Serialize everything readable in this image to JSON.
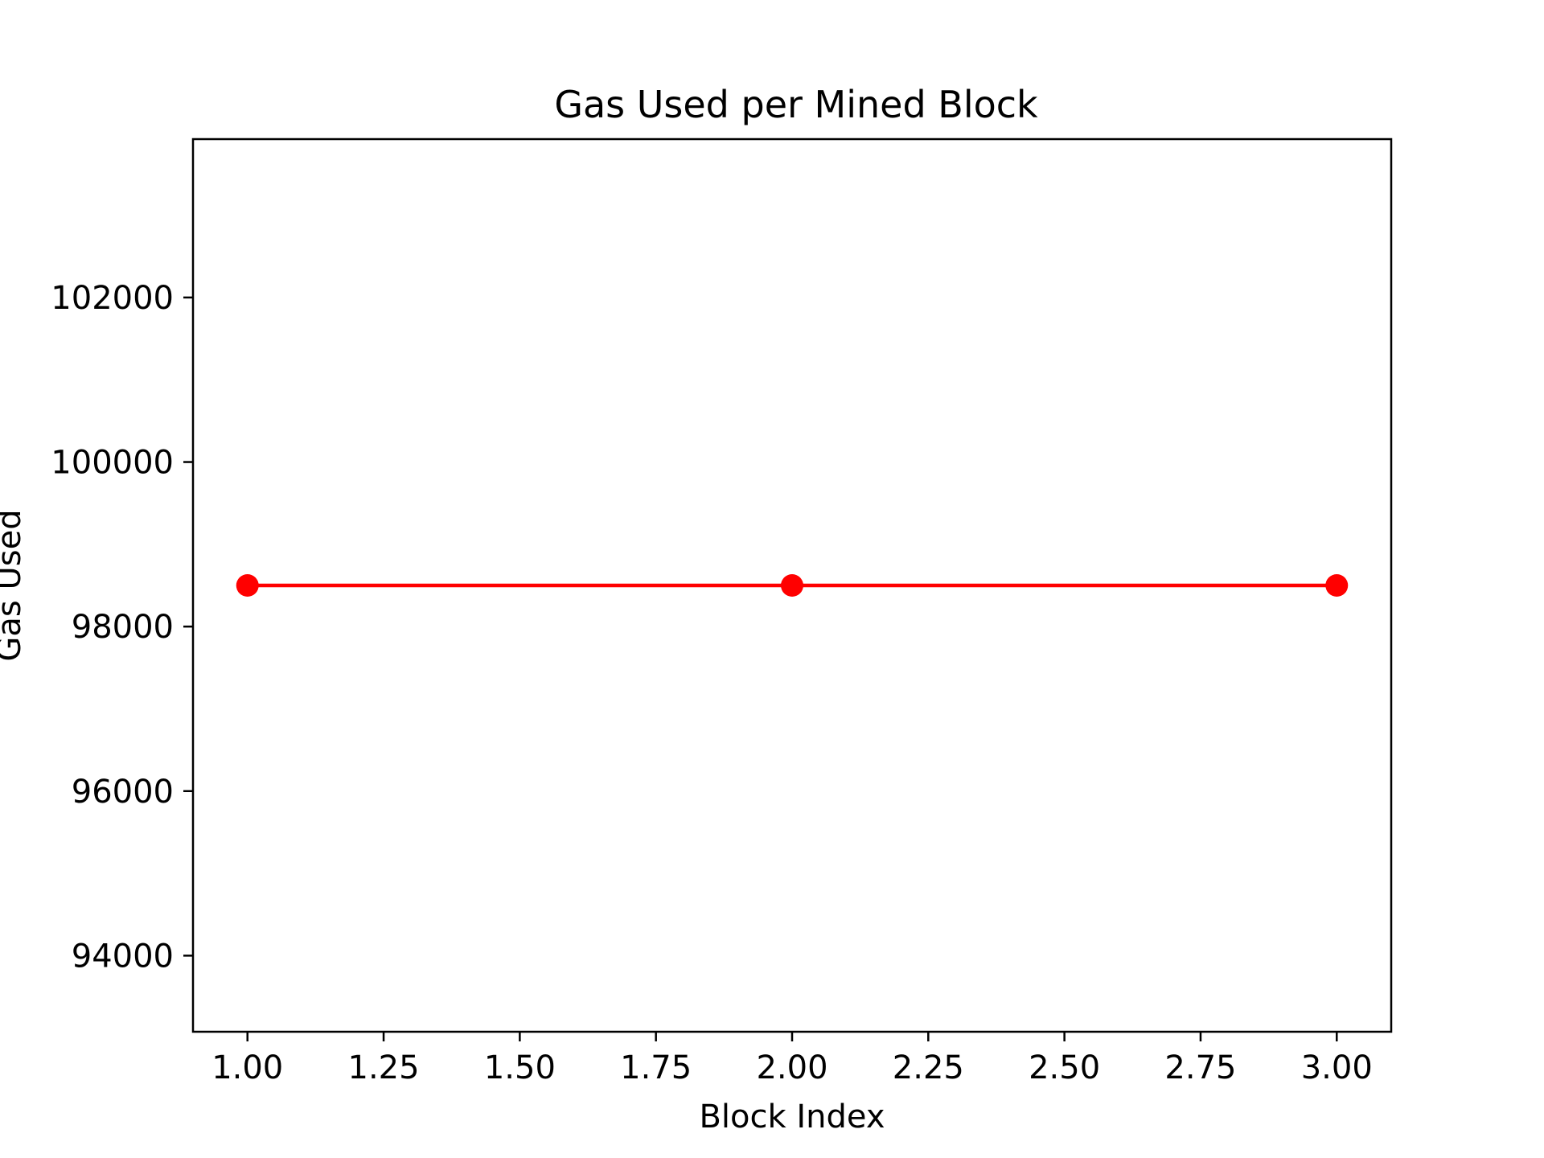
{
  "chart_data": {
    "type": "line",
    "title": "Gas Used per Mined Block",
    "xlabel": "Block Index",
    "ylabel": "Gas Used",
    "grid": false,
    "x": [
      1,
      2,
      3
    ],
    "series": [
      {
        "name": "Gas Used",
        "color": "#ff0000",
        "marker": "circle",
        "values": [
          98500,
          98500,
          98500
        ]
      }
    ],
    "xlim": [
      0.9,
      3.1
    ],
    "ylim": [
      93075,
      103925
    ],
    "xticks": [
      1.0,
      1.25,
      1.5,
      1.75,
      2.0,
      2.25,
      2.5,
      2.75,
      3.0
    ],
    "xtick_labels": [
      "1.00",
      "1.25",
      "1.50",
      "1.75",
      "2.00",
      "2.25",
      "2.50",
      "2.75",
      "3.00"
    ],
    "yticks": [
      94000,
      96000,
      98000,
      100000,
      102000
    ],
    "ytick_labels": [
      "94000",
      "96000",
      "98000",
      "100000",
      "102000"
    ]
  }
}
